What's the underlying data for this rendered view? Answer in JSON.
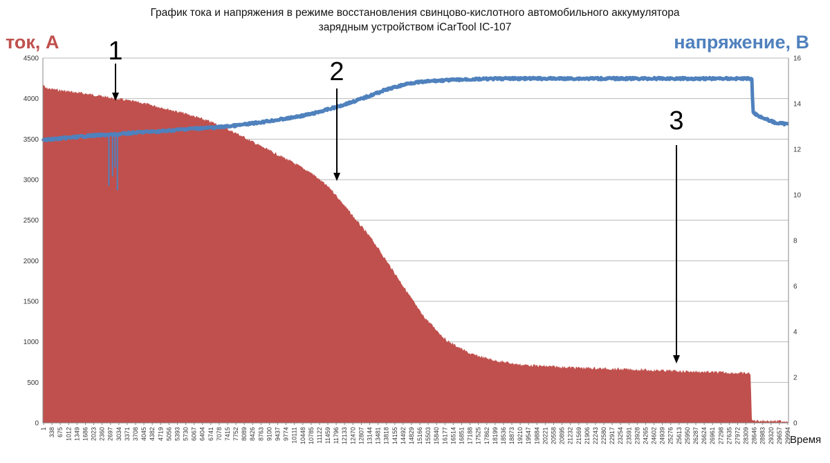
{
  "title_line1": "График тока и напряжения в режиме восстановления свинцово-кислотного автомобильного аккумулятора",
  "title_line2": "зарядным устройством iCarTool IC-107",
  "colors": {
    "current": "#c0504d",
    "voltage": "#4f81bd",
    "grid": "#b9b9b9",
    "axis": "#888888",
    "annotation": "#000000"
  },
  "chart_data": {
    "type": "area",
    "title": "График тока и напряжения в режиме восстановления свинцово-кислотного автомобильного аккумулятора зарядным устройством iCarTool IC-107",
    "xlabel": "Время",
    "ylabel": "ток, А",
    "y2label": "напряжение, В",
    "xlim": [
      1,
      30500
    ],
    "ylim": [
      0,
      4500
    ],
    "y2lim": [
      0,
      16
    ],
    "y_ticks": [
      0,
      500,
      1000,
      1500,
      2000,
      2500,
      3000,
      3500,
      4000,
      4500
    ],
    "y2_ticks": [
      0,
      2,
      4,
      6,
      8,
      10,
      12,
      14,
      16
    ],
    "x_tick_labels": [
      "1",
      "338",
      "675",
      "1012",
      "1349",
      "1686",
      "2023",
      "2360",
      "2697",
      "3034",
      "3371",
      "3708",
      "4045",
      "4382",
      "4719",
      "5056",
      "5393",
      "5730",
      "6067",
      "6404",
      "6741",
      "7078",
      "7415",
      "7752",
      "8089",
      "8426",
      "8763",
      "9100",
      "9437",
      "9774",
      "10111",
      "10448",
      "10785",
      "11122",
      "11459",
      "11796",
      "12133",
      "12470",
      "12807",
      "13144",
      "13481",
      "13818",
      "14155",
      "14492",
      "14829",
      "15166",
      "15503",
      "15840",
      "16177",
      "16514",
      "16851",
      "17188",
      "17525",
      "17862",
      "18199",
      "18536",
      "18873",
      "19210",
      "19547",
      "19884",
      "20221",
      "20558",
      "20895",
      "21232",
      "21569",
      "21906",
      "22243",
      "22580",
      "22917",
      "23254",
      "23591",
      "23928",
      "24265",
      "24602",
      "24939",
      "25276",
      "25613",
      "25950",
      "26287",
      "26624",
      "26961",
      "27298",
      "27635",
      "27972",
      "28309",
      "28646",
      "28983",
      "29320",
      "29657",
      "29994"
    ],
    "grid": true,
    "series": [
      {
        "name": "ток, А",
        "axis": "left",
        "kind": "area",
        "x": [
          1,
          100,
          1000,
          2000,
          3000,
          4000,
          5000,
          6000,
          7000,
          8000,
          9000,
          10000,
          11000,
          11800,
          12500,
          13500,
          14500,
          15500,
          16500,
          17500,
          18500,
          19500,
          20500,
          22000,
          24000,
          26000,
          28000,
          28950,
          29000,
          30500
        ],
        "values": [
          4180,
          4130,
          4090,
          4050,
          4000,
          3950,
          3880,
          3800,
          3700,
          3560,
          3400,
          3250,
          3080,
          2880,
          2620,
          2250,
          1800,
          1340,
          1020,
          850,
          770,
          720,
          700,
          680,
          660,
          640,
          620,
          610,
          30,
          20
        ]
      },
      {
        "name": "напряжение, В",
        "axis": "right",
        "kind": "line",
        "x": [
          1,
          1000,
          2000,
          3000,
          4000,
          5000,
          6000,
          7000,
          8000,
          9000,
          10000,
          11000,
          12000,
          13000,
          14000,
          15000,
          16000,
          17000,
          18000,
          19000,
          20000,
          22000,
          25000,
          28000,
          29000,
          29050,
          29500,
          30000,
          30500
        ],
        "values": [
          12.4,
          12.5,
          12.6,
          12.65,
          12.75,
          12.8,
          12.9,
          12.95,
          13.05,
          13.2,
          13.35,
          13.55,
          13.85,
          14.2,
          14.6,
          14.9,
          15.0,
          15.05,
          15.08,
          15.1,
          15.1,
          15.1,
          15.1,
          15.1,
          15.1,
          13.6,
          13.35,
          13.15,
          13.1
        ]
      }
    ],
    "annotations": [
      {
        "label": "1",
        "x": 3034,
        "y": 3950
      },
      {
        "label": "2",
        "x": 12300,
        "y": 3000
      },
      {
        "label": "3",
        "x": 25950,
        "y": 760
      }
    ]
  }
}
